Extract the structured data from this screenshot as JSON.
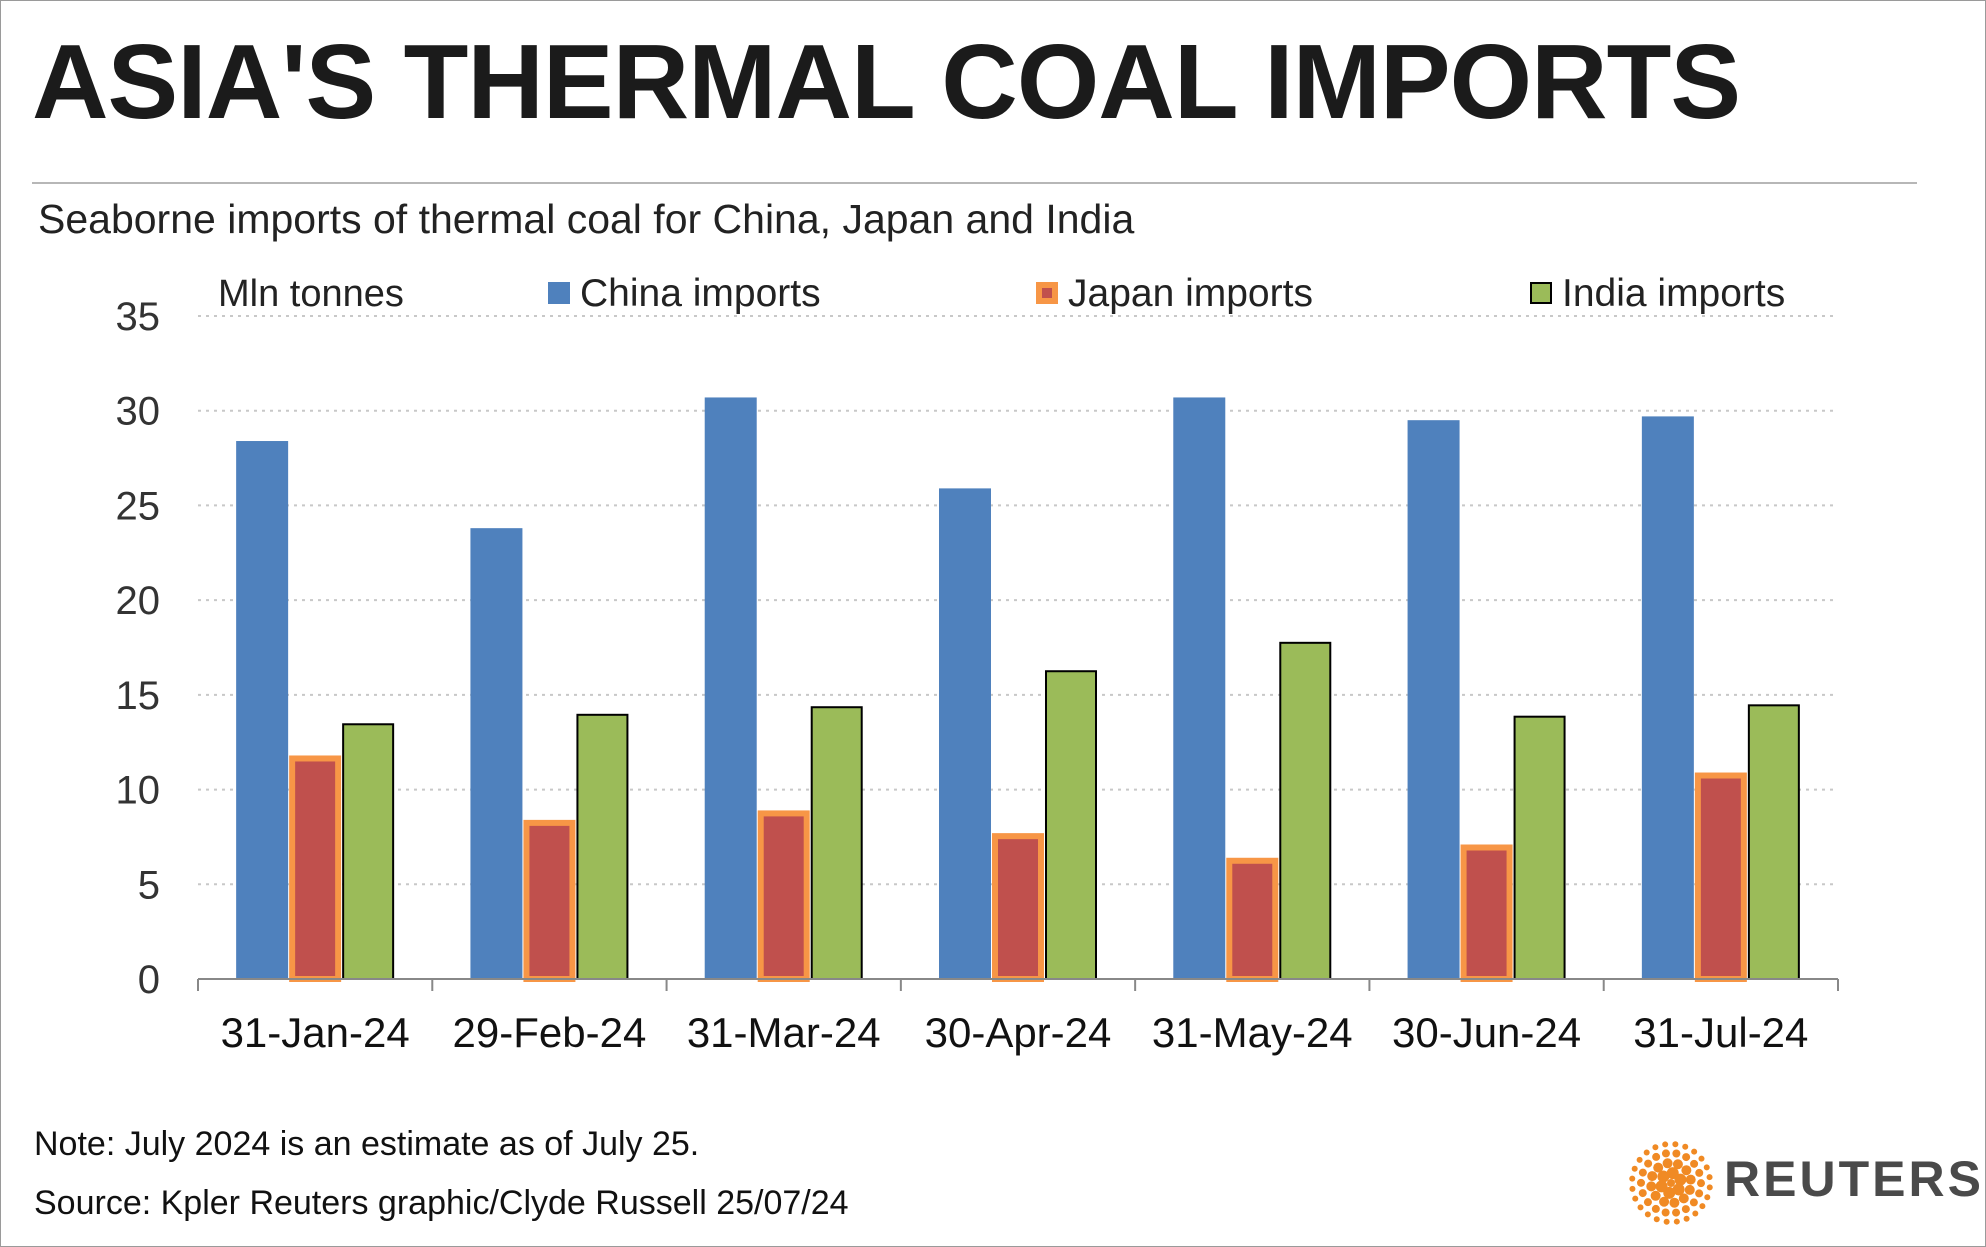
{
  "title": "ASIA'S THERMAL COAL IMPORTS",
  "subtitle": "Seaborne imports of thermal coal for China, Japan and India",
  "notes": {
    "line1": "Note: July 2024 is an estimate as of July 25.",
    "line2": "Source: Kpler    Reuters graphic/Clyde Russell 25/07/24"
  },
  "brand": "REUTERS",
  "logo_icon": "reuters-dot-logo-icon",
  "colors": {
    "china": "#4f81bd",
    "japan_fill": "#c0504d",
    "japan_border": "#f79646",
    "india": "#9bbb59",
    "logo": "#f08a24"
  },
  "chart_data": {
    "type": "bar",
    "ylabel": "Mln tonnes",
    "ylim": [
      0,
      35
    ],
    "yticks": [
      "0",
      "5",
      "10",
      "15",
      "20",
      "25",
      "30",
      "35"
    ],
    "grid": true,
    "legend_position": "top",
    "categories": [
      "31-Jan-24",
      "29-Feb-24",
      "31-Mar-24",
      "30-Apr-24",
      "31-May-24",
      "30-Jun-24",
      "31-Jul-24"
    ],
    "series": [
      {
        "name": "China imports",
        "values": [
          28.4,
          23.8,
          30.7,
          25.9,
          30.7,
          29.5,
          29.7
        ]
      },
      {
        "name": "Japan imports",
        "values": [
          11.8,
          8.4,
          8.9,
          7.7,
          6.4,
          7.1,
          10.9
        ]
      },
      {
        "name": "India imports",
        "values": [
          13.5,
          14.0,
          14.4,
          16.3,
          17.8,
          13.9,
          14.5
        ]
      }
    ]
  }
}
